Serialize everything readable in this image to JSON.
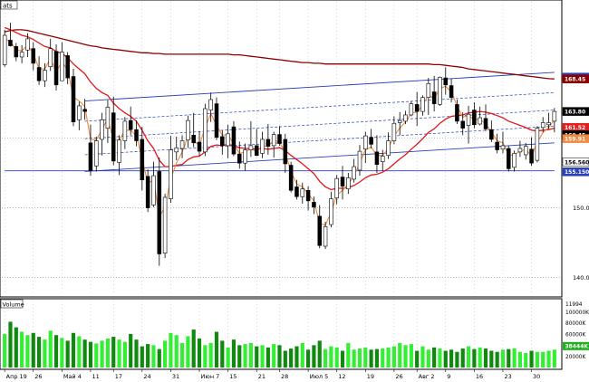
{
  "chart_data": {
    "type": "candlestick",
    "symbol_label": "ats",
    "volume_label": "Volume",
    "x_ticks": [
      "Апр 19",
      "26",
      "Май 4",
      "11",
      "17",
      "24",
      "31",
      "Июн 7",
      "15",
      "21",
      "28",
      "Июл 5",
      "12",
      "19",
      "26",
      "Авг 2",
      "9",
      "16",
      "23",
      "30"
    ],
    "price_ticks": [
      140.0,
      150.0,
      160.0
    ],
    "price_ylim": [
      137.5,
      179.5
    ],
    "price_badges": [
      {
        "value": "168.7200",
        "color": "#2840b8"
      },
      {
        "value": "168.45",
        "color": "#8a0000"
      },
      {
        "value": "163.80",
        "color": "#000000"
      },
      {
        "value": "161.52",
        "color": "#e02020"
      },
      {
        "value": "160.45",
        "color": "#000000"
      },
      {
        "value": "159.91",
        "color": "#f08a40"
      },
      {
        "value": "156.5600",
        "color": "#ffffff"
      },
      {
        "value": "155.1500",
        "color": "#2840b8"
      }
    ],
    "volume_ticks": [
      "11994",
      "100000K",
      "80000K",
      "60000K",
      "40000K",
      "20000K"
    ],
    "volume_badge": "38444K",
    "ohlc": [
      [
        170.5,
        175.5,
        170.2,
        174.7
      ],
      [
        174.0,
        176.5,
        173.1,
        173.2
      ],
      [
        173.1,
        173.6,
        171.0,
        171.6
      ],
      [
        171.6,
        173.3,
        170.7,
        172.3
      ],
      [
        172.6,
        175.0,
        171.6,
        174.2
      ],
      [
        172.8,
        173.7,
        169.7,
        170.7
      ],
      [
        170.1,
        171.7,
        167.6,
        168.2
      ],
      [
        168.2,
        170.7,
        167.3,
        169.7
      ],
      [
        170.2,
        174.2,
        169.6,
        172.8
      ],
      [
        172.4,
        173.4,
        166.8,
        167.6
      ],
      [
        168.2,
        173.7,
        168.2,
        172.3
      ],
      [
        171.8,
        172.3,
        167.7,
        168.6
      ],
      [
        168.8,
        169.9,
        161.7,
        162.3
      ],
      [
        162.6,
        165.2,
        161.1,
        164.6
      ],
      [
        164.1,
        165.6,
        162.6,
        163.8
      ],
      [
        159.3,
        161.9,
        154.6,
        155.3
      ],
      [
        156.0,
        160.2,
        155.2,
        159.6
      ],
      [
        159.8,
        163.6,
        157.5,
        162.6
      ],
      [
        161.4,
        165.4,
        159.3,
        164.4
      ],
      [
        163.6,
        165.9,
        156.1,
        156.7
      ],
      [
        156.5,
        160.4,
        154.7,
        159.7
      ],
      [
        159.6,
        163.0,
        158.4,
        162.4
      ],
      [
        162.5,
        164.5,
        160.4,
        161.2
      ],
      [
        161.2,
        162.5,
        158.8,
        159.6
      ],
      [
        159.8,
        161.6,
        152.5,
        154.0
      ],
      [
        154.5,
        155.5,
        149.4,
        150.0
      ],
      [
        150.4,
        156.6,
        150.1,
        154.6
      ],
      [
        155.2,
        157.2,
        141.7,
        143.4
      ],
      [
        143.5,
        152.0,
        142.8,
        151.5
      ],
      [
        151.3,
        160.3,
        150.7,
        158.3
      ],
      [
        158.0,
        160.2,
        156.8,
        158.6
      ],
      [
        158.5,
        160.4,
        157.1,
        159.6
      ],
      [
        159.7,
        163.2,
        158.6,
        162.5
      ],
      [
        160.4,
        163.6,
        158.7,
        159.3
      ],
      [
        159.4,
        161.0,
        157.4,
        158.1
      ],
      [
        158.0,
        164.9,
        157.4,
        164.2
      ],
      [
        164.0,
        166.5,
        162.3,
        165.5
      ],
      [
        164.9,
        165.8,
        159.7,
        160.1
      ],
      [
        160.2,
        161.1,
        157.6,
        158.9
      ],
      [
        158.9,
        161.9,
        157.1,
        160.6
      ],
      [
        161.6,
        162.4,
        157.4,
        157.7
      ],
      [
        157.7,
        159.5,
        155.6,
        156.4
      ],
      [
        156.4,
        159.2,
        155.3,
        158.3
      ],
      [
        158.3,
        162.4,
        157.3,
        158.9
      ],
      [
        158.9,
        161.3,
        157.4,
        157.5
      ],
      [
        157.8,
        160.9,
        157.1,
        159.8
      ],
      [
        159.8,
        162.0,
        157.6,
        158.8
      ],
      [
        158.9,
        160.9,
        157.2,
        160.5
      ],
      [
        160.5,
        161.7,
        158.9,
        159.2
      ],
      [
        159.8,
        160.6,
        155.0,
        156.3
      ],
      [
        156.1,
        156.6,
        152.2,
        152.5
      ],
      [
        153.0,
        154.0,
        151.2,
        151.6
      ],
      [
        151.6,
        153.6,
        150.6,
        152.7
      ],
      [
        152.5,
        153.1,
        149.6,
        151.0
      ],
      [
        150.8,
        151.6,
        149.1,
        150.1
      ],
      [
        148.8,
        150.4,
        144.2,
        144.6
      ],
      [
        144.5,
        148.0,
        144.1,
        147.3
      ],
      [
        147.6,
        152.3,
        147.2,
        151.3
      ],
      [
        151.4,
        154.7,
        150.5,
        154.2
      ],
      [
        154.4,
        156.0,
        151.2,
        153.1
      ],
      [
        152.7,
        155.0,
        152.0,
        154.3
      ],
      [
        154.1,
        157.0,
        153.6,
        155.9
      ],
      [
        155.4,
        159.0,
        154.6,
        158.1
      ],
      [
        158.4,
        160.9,
        156.4,
        160.3
      ],
      [
        160.1,
        161.3,
        158.5,
        159.1
      ],
      [
        158.0,
        160.4,
        155.0,
        156.2
      ],
      [
        156.6,
        158.3,
        155.3,
        157.4
      ],
      [
        157.5,
        160.8,
        157.0,
        159.6
      ],
      [
        159.6,
        163.1,
        159.1,
        162.1
      ],
      [
        162.2,
        163.7,
        160.4,
        162.5
      ],
      [
        162.4,
        163.9,
        162.0,
        163.3
      ],
      [
        163.3,
        165.3,
        163.1,
        164.9
      ],
      [
        164.8,
        166.6,
        161.7,
        163.8
      ],
      [
        163.8,
        166.1,
        163.2,
        165.8
      ],
      [
        165.8,
        168.6,
        163.3,
        167.8
      ],
      [
        166.6,
        168.9,
        163.8,
        164.9
      ],
      [
        164.8,
        168.8,
        164.6,
        168.7
      ],
      [
        168.6,
        170.1,
        166.2,
        167.6
      ],
      [
        167.5,
        168.5,
        165.1,
        165.8
      ],
      [
        164.8,
        165.5,
        162.0,
        162.4
      ],
      [
        162.4,
        163.7,
        160.4,
        161.4
      ],
      [
        161.8,
        164.6,
        159.2,
        163.4
      ],
      [
        164.0,
        165.1,
        161.4,
        161.9
      ],
      [
        162.0,
        164.5,
        161.8,
        162.9
      ],
      [
        162.8,
        164.8,
        161.0,
        161.3
      ],
      [
        161.2,
        162.5,
        159.4,
        159.8
      ],
      [
        159.4,
        160.6,
        157.8,
        158.3
      ],
      [
        158.4,
        160.9,
        157.8,
        158.9
      ],
      [
        158.5,
        158.9,
        155.2,
        155.6
      ],
      [
        155.8,
        158.2,
        155.2,
        157.8
      ],
      [
        158.0,
        159.6,
        157.3,
        158.5
      ],
      [
        157.6,
        159.3,
        156.9,
        158.8
      ],
      [
        158.4,
        160.1,
        156.0,
        156.4
      ],
      [
        156.8,
        161.7,
        156.5,
        161.4
      ],
      [
        161.5,
        163.0,
        160.8,
        162.2
      ],
      [
        161.9,
        163.6,
        161.3,
        162.2
      ],
      [
        162.4,
        164.3,
        160.8,
        163.8
      ]
    ],
    "volume": [
      60,
      82,
      72,
      64,
      58,
      62,
      55,
      50,
      66,
      58,
      53,
      48,
      62,
      56,
      50,
      46,
      43,
      48,
      52,
      55,
      50,
      46,
      60,
      50,
      38,
      42,
      40,
      33,
      48,
      62,
      58,
      44,
      56,
      68,
      52,
      40,
      44,
      64,
      48,
      36,
      50,
      40,
      42,
      44,
      38,
      40,
      36,
      42,
      40,
      30,
      34,
      38,
      44,
      32,
      40,
      48,
      33,
      38,
      36,
      30,
      44,
      32,
      34,
      36,
      32,
      33,
      34,
      36,
      38,
      44,
      40,
      42,
      30,
      38,
      32,
      36,
      34,
      30,
      32,
      28,
      34,
      38,
      33,
      36,
      34,
      30,
      28,
      32,
      33,
      34,
      28,
      26,
      30,
      28,
      28,
      30,
      32
    ],
    "volume_ylim": [
      0,
      120
    ],
    "ma_short": [
      174.2,
      173.8,
      172.6,
      172.5,
      173.3,
      172.1,
      169.9,
      169.9,
      171.4,
      169.5,
      170.9,
      169.7,
      165.9,
      165.3,
      164.5,
      159.8,
      159.7,
      161.2,
      162.8,
      159.7,
      159.7,
      161.1,
      161.1,
      160.3,
      157.1,
      153.5,
      154.0,
      148.7,
      150.1,
      154.2,
      156.4,
      158.0,
      160.2,
      159.7,
      158.9,
      161.5,
      163.5,
      161.8,
      160.4,
      160.5,
      159.1,
      157.8,
      158.0,
      158.5,
      158.0,
      158.9,
      158.8,
      159.7,
      159.4,
      157.9,
      155.2,
      153.4,
      153.0,
      152.0,
      151.0,
      147.8,
      147.5,
      149.4,
      151.8,
      152.5,
      153.4,
      154.6,
      156.4,
      158.3,
      158.7,
      157.5,
      157.5,
      158.5,
      160.3,
      161.4,
      162.3,
      163.6,
      163.7,
      164.7,
      166.2,
      165.6,
      167.1,
      167.4,
      166.6,
      164.6,
      163.0,
      163.2,
      162.6,
      162.7,
      162.0,
      160.9,
      159.6,
      159.3,
      157.5,
      157.6,
      158.1,
      158.4,
      157.4,
      159.4,
      160.8,
      161.5,
      162.6
    ],
    "ma_long": [
      175.8,
      175.5,
      175.1,
      174.7,
      174.5,
      174.1,
      173.6,
      173.1,
      172.9,
      172.4,
      172.1,
      171.5,
      170.6,
      169.9,
      169.2,
      168.0,
      167.1,
      166.5,
      166.1,
      165.0,
      164.2,
      163.6,
      163.1,
      162.4,
      161.1,
      159.6,
      158.5,
      156.8,
      155.9,
      155.9,
      156.1,
      156.2,
      156.9,
      157.3,
      157.4,
      158.0,
      158.8,
      159.0,
      158.9,
      159.1,
      158.9,
      158.6,
      158.5,
      158.5,
      158.4,
      158.5,
      158.4,
      158.5,
      158.6,
      158.2,
      157.5,
      156.9,
      156.3,
      155.6,
      154.9,
      153.8,
      153.0,
      152.6,
      152.8,
      152.8,
      152.9,
      153.2,
      153.7,
      154.3,
      154.7,
      154.8,
      155.1,
      155.6,
      156.3,
      157.0,
      157.6,
      158.4,
      159.1,
      159.9,
      160.8,
      161.3,
      162.1,
      162.7,
      163.1,
      163.2,
      163.3,
      163.6,
      163.7,
      163.8,
      163.7,
      163.5,
      163.2,
      162.9,
      162.4,
      162.1,
      161.8,
      161.5,
      161.1,
      161.0,
      161.1,
      161.2,
      161.4
    ],
    "ma_slow": [
      175.2,
      175.4,
      175.5,
      175.5,
      175.4,
      175.2,
      175.0,
      174.8,
      174.6,
      174.4,
      174.2,
      174.0,
      173.8,
      173.6,
      173.4,
      173.2,
      173.1,
      172.9,
      172.8,
      172.7,
      172.6,
      172.5,
      172.4,
      172.3,
      172.2,
      172.2,
      172.1,
      172.1,
      172.0,
      172.0,
      172.0,
      172.0,
      172.0,
      172.0,
      172.0,
      172.0,
      172.0,
      172.0,
      172.0,
      172.0,
      171.9,
      171.9,
      171.8,
      171.7,
      171.6,
      171.5,
      171.4,
      171.3,
      171.2,
      171.1,
      171.0,
      170.9,
      170.8,
      170.8,
      170.7,
      170.7,
      170.6,
      170.6,
      170.6,
      170.6,
      170.6,
      170.6,
      170.6,
      170.6,
      170.6,
      170.6,
      170.6,
      170.6,
      170.6,
      170.6,
      170.6,
      170.6,
      170.6,
      170.6,
      170.6,
      170.5,
      170.5,
      170.4,
      170.3,
      170.2,
      170.1,
      169.9,
      169.8,
      169.7,
      169.6,
      169.5,
      169.4,
      169.3,
      169.2,
      169.1,
      169.0,
      168.9,
      168.8,
      168.7,
      168.6,
      168.5,
      168.45
    ],
    "channel_lines": [
      {
        "from": [
          14,
          165.3
        ],
        "to": [
          96,
          169.4
        ],
        "color": "#2840b8",
        "dash": false
      },
      {
        "from": [
          14,
          155.2
        ],
        "to": [
          96,
          159.3
        ],
        "color": "#2840b8",
        "dash": false
      },
      {
        "from": [
          0,
          155.3
        ],
        "to": [
          96,
          155.3
        ],
        "color": "#2840b8",
        "dash": false
      },
      {
        "from": [
          14,
          162.4
        ],
        "to": [
          96,
          166.5
        ],
        "color": "#2840b8",
        "dash": true
      },
      {
        "from": [
          14,
          159.9
        ],
        "to": [
          96,
          164.0
        ],
        "color": "#2840b8",
        "dash": true
      },
      {
        "from": [
          14,
          157.6
        ],
        "to": [
          96,
          161.7
        ],
        "color": "#2840b8",
        "dash": true
      }
    ]
  }
}
